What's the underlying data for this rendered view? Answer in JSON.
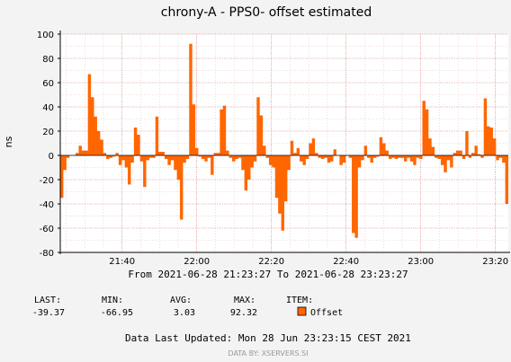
{
  "chart_data": {
    "type": "area",
    "title": "chrony-A - PPS0- offset estimated",
    "ylabel": "ns",
    "xlabel": "",
    "ylim": [
      -80,
      100
    ],
    "y_ticks": [
      100,
      80,
      60,
      40,
      20,
      0,
      -20,
      -40,
      -60,
      -80
    ],
    "x_ticks": [
      "21:40",
      "22:00",
      "22:20",
      "22:40",
      "23:00",
      "23:20"
    ],
    "x_range": [
      "21:23:27",
      "23:23:27"
    ],
    "grid": true,
    "legend": "bottom",
    "series": [
      {
        "name": "Offset",
        "color": "#ff6600",
        "values": [
          -35,
          -12,
          -2,
          0,
          0,
          2,
          8,
          4,
          4,
          67,
          48,
          32,
          20,
          13,
          2,
          -3,
          -2,
          -1,
          2,
          -8,
          -4,
          -10,
          -24,
          -6,
          23,
          17,
          -5,
          -26,
          -4,
          -2,
          -2,
          32,
          3,
          3,
          -3,
          -8,
          -4,
          -12,
          -20,
          -53,
          -6,
          -3,
          92,
          42,
          6,
          -1,
          -3,
          -5,
          -2,
          -16,
          2,
          2,
          38,
          41,
          4,
          -2,
          -5,
          -3,
          -2,
          -12,
          -29,
          -20,
          -10,
          -5,
          48,
          33,
          8,
          -2,
          -8,
          -10,
          -35,
          -48,
          -62,
          -38,
          -12,
          12,
          2,
          6,
          -5,
          -8,
          -3,
          10,
          14,
          2,
          -2,
          -3,
          -2,
          -6,
          -5,
          5,
          0,
          -8,
          -6,
          0,
          -2,
          -64,
          -68,
          -10,
          -4,
          8,
          -2,
          -6,
          -2,
          -1,
          15,
          10,
          4,
          -3,
          -2,
          -3,
          -2,
          -2,
          -5,
          -2,
          -5,
          -8,
          -2,
          -3,
          45,
          38,
          14,
          7,
          -2,
          -3,
          -8,
          -14,
          -4,
          -10,
          2,
          4,
          4,
          -3,
          20,
          -2,
          2,
          8,
          1,
          -2,
          47,
          24,
          23,
          14,
          -4,
          -2,
          -6,
          -40
        ]
      }
    ]
  },
  "footer": {
    "range_label": "From 2021-06-28 21:23:27 To 2021-06-28 23:23:27",
    "stats_headers": [
      "LAST:",
      "MIN:",
      "AVG:",
      "MAX:",
      "ITEM:"
    ],
    "stats_values": [
      "-39.37",
      "-66.95",
      "3.03",
      "92.32"
    ],
    "item_name": "Offset",
    "last_updated": "Data Last Updated: Mon 28 Jun 23:23:15 CEST 2021",
    "data_by": "DATA BY: XSERVERS.SI"
  }
}
